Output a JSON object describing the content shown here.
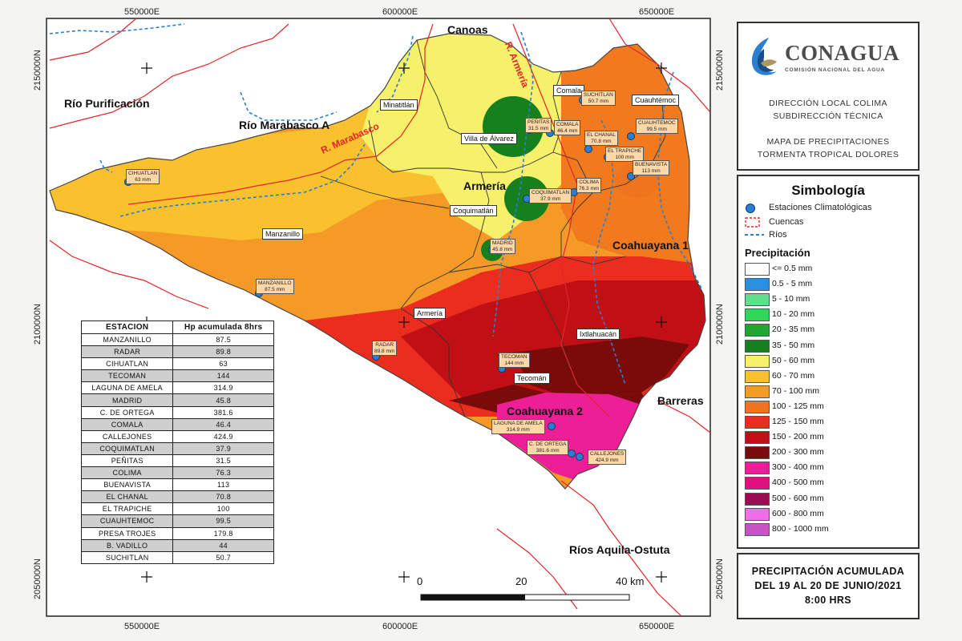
{
  "coordinates": {
    "top_x": [
      "550000E",
      "600000E",
      "650000E"
    ],
    "bottom_x": [
      "550000E",
      "600000E",
      "650000E"
    ],
    "left_y": [
      "2150000N",
      "2100000N",
      "2050000N"
    ],
    "right_y": [
      "2150000N",
      "2100000N",
      "2050000N"
    ]
  },
  "region_labels": {
    "canoas": "Canoas",
    "rio_purificacion": "Río Purificación",
    "rio_marabasco_a": "Río Marabasco A",
    "armeria_big": "Armería",
    "coahuayana_1": "Coahuayana 1",
    "coahuayana_2": "Coahuayana 2",
    "barreras": "Barreras",
    "rios_aquila": "Ríos Aquila-Ostuta"
  },
  "rivers": {
    "armeria": "R. Armería",
    "marabasco": "R. Marabasco"
  },
  "municipalities": {
    "minatitlan": "Minatitlán",
    "comala": "Comala",
    "cuauhtemoc": "Cuauhtémoc",
    "villa_de_alvarez": "Villa de Álvarez",
    "coquimatlan": "Coquimatlán",
    "manzanillo": "Manzanillo",
    "armeria": "Armería",
    "ixtlahuacan": "Ixtlahuacán",
    "tecoman": "Tecomán"
  },
  "stations": {
    "cihuatlan": [
      "CIHUATLAN",
      "63 mm"
    ],
    "manzanillo": [
      "MANZANILLO",
      "87.5 mm"
    ],
    "radar": [
      "RADAR",
      "89.8 mm"
    ],
    "tecoman": [
      "TECOMAN",
      "144 mm"
    ],
    "madrid": [
      "MADRID",
      "45.8 mm"
    ],
    "coquimatlan": [
      "COQUIMATLAN",
      "37.9 mm"
    ],
    "penitas": [
      "PEÑITAS",
      "31.5 mm"
    ],
    "comala": [
      "COMALA",
      "46.4 mm"
    ],
    "suchitlan": [
      "SUCHITLAN",
      "50.7 mm"
    ],
    "el_chanal": [
      "EL CHANAL",
      "70.8 mm"
    ],
    "el_trapiche": [
      "EL TRAPICHE",
      "100 mm"
    ],
    "cuauhtemoc": [
      "CUAUHTEMOC",
      "99.5 mm"
    ],
    "buenavista": [
      "BUENAVISTA",
      "113 mm"
    ],
    "colima": [
      "COLIMA",
      "76.3 mm"
    ],
    "laguna": [
      "LAGUNA DE AMELA",
      "314.9 mm"
    ],
    "ortega": [
      "C. DE ORTEGA",
      "381.6 mm"
    ],
    "callejones": [
      "CALLEJONES",
      "424.9 mm"
    ]
  },
  "table": {
    "header": [
      "ESTACION",
      "Hp acumulada 8hrs"
    ],
    "rows": [
      [
        "MANZANILLO",
        "87.5"
      ],
      [
        "RADAR",
        "89.8"
      ],
      [
        "CIHUATLAN",
        "63"
      ],
      [
        "TECOMAN",
        "144"
      ],
      [
        "LAGUNA DE AMELA",
        "314.9"
      ],
      [
        "MADRID",
        "45.8"
      ],
      [
        "C. DE ORTEGA",
        "381.6"
      ],
      [
        "COMALA",
        "46.4"
      ],
      [
        "CALLEJONES",
        "424.9"
      ],
      [
        "COQUIMATLAN",
        "37.9"
      ],
      [
        "PEÑITAS",
        "31.5"
      ],
      [
        "COLIMA",
        "76.3"
      ],
      [
        "BUENAVISTA",
        "113"
      ],
      [
        "EL CHANAL",
        "70.8"
      ],
      [
        "EL TRAPICHE",
        "100"
      ],
      [
        "CUAUHTEMOC",
        "99.5"
      ],
      [
        "PRESA TROJES",
        "179.8"
      ],
      [
        "B. VADILLO",
        "44"
      ],
      [
        "SUCHITLAN",
        "50.7"
      ]
    ]
  },
  "scale": {
    "ticks": [
      "0",
      "20",
      "40 km"
    ]
  },
  "header_panel": {
    "logo": "CONAGUA",
    "logo_sub": "COMISIÓN NACIONAL DEL AGUA",
    "lines": [
      "DIRECCIÓN LOCAL COLIMA",
      "SUBDIRECCIÓN TÉCNICA",
      "MAPA DE PRECIPITACIONES",
      "TORMENTA TROPICAL DOLORES"
    ]
  },
  "legend": {
    "title": "Simbología",
    "stations": "Estaciones Climatológicas",
    "basins": "Cuencas",
    "rivers": "Ríos",
    "precip_title": "Precipitación",
    "classes": [
      {
        "label": "<= 0.5 mm",
        "color": "#ffffff"
      },
      {
        "label": "0.5 - 5 mm",
        "color": "#2b8fe0"
      },
      {
        "label": "5 - 10 mm",
        "color": "#5ce08a"
      },
      {
        "label": "10 - 20 mm",
        "color": "#30d655"
      },
      {
        "label": "20 - 35 mm",
        "color": "#1ea832"
      },
      {
        "label": "35 - 50 mm",
        "color": "#16801f"
      },
      {
        "label": "50 - 60 mm",
        "color": "#f7f06a"
      },
      {
        "label": "60 - 70 mm",
        "color": "#f8c12d"
      },
      {
        "label": "70 - 100 mm",
        "color": "#f59a27"
      },
      {
        "label": "100 - 125 mm",
        "color": "#f0741d"
      },
      {
        "label": "125 - 150 mm",
        "color": "#ea2d1e"
      },
      {
        "label": "150 - 200 mm",
        "color": "#c11015"
      },
      {
        "label": "200 - 300 mm",
        "color": "#7a0b0b"
      },
      {
        "label": "300 - 400 mm",
        "color": "#ec1f97"
      },
      {
        "label": "400 - 500 mm",
        "color": "#e11081"
      },
      {
        "label": "500 - 600 mm",
        "color": "#9c0c52"
      },
      {
        "label": "600 - 800 mm",
        "color": "#f06ee8"
      },
      {
        "label": "800 - 1000 mm",
        "color": "#c853c8"
      }
    ]
  },
  "date_panel": {
    "lines": [
      "PRECIPITACIÓN ACUMULADA",
      "DEL 19 AL 20 DE JUNIO/2021",
      "8:00 HRS"
    ]
  }
}
